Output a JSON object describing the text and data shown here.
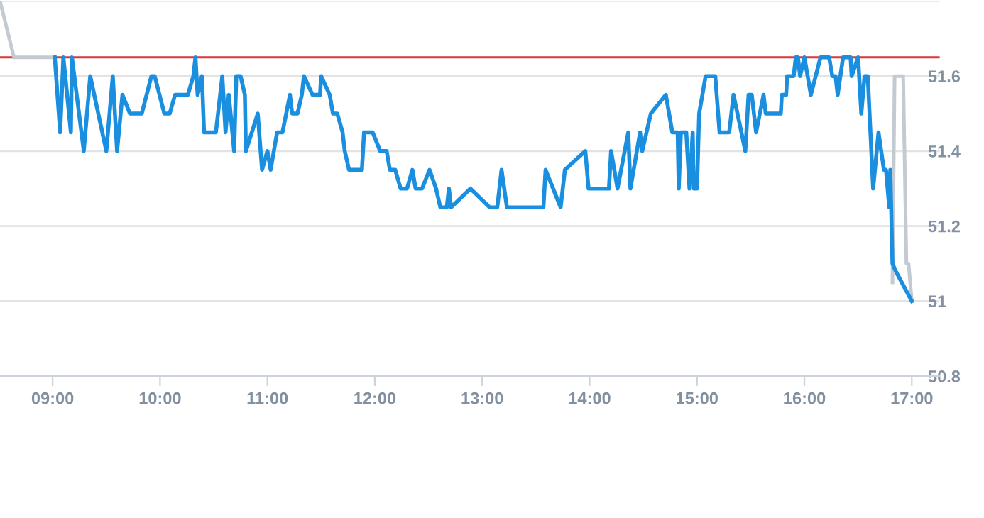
{
  "chart_data": {
    "type": "line",
    "xlim": [
      8.51,
      17.26
    ],
    "ylim": [
      50.8,
      51.8
    ],
    "xticks": [
      {
        "value": 9,
        "label": "09:00"
      },
      {
        "value": 10,
        "label": "10:00"
      },
      {
        "value": 11,
        "label": "11:00"
      },
      {
        "value": 12,
        "label": "12:00"
      },
      {
        "value": 13,
        "label": "13:00"
      },
      {
        "value": 14,
        "label": "14:00"
      },
      {
        "value": 15,
        "label": "15:00"
      },
      {
        "value": 16,
        "label": "16:00"
      },
      {
        "value": 17,
        "label": "17:00"
      }
    ],
    "yticks": [
      50.8,
      51,
      51.2,
      51.4,
      51.6,
      {
        "value": 51.8,
        "label": null
      }
    ],
    "grid": "y",
    "line_style": "solid",
    "marker": "none",
    "ref_lines": [
      {
        "axis": "y",
        "value": 51.65,
        "color": "#d9393a"
      }
    ],
    "series": [
      {
        "color": "#c3cad2",
        "x": [
          8.51,
          8.64,
          9.0,
          12.0,
          16.82,
          16.84,
          16.92,
          16.95,
          16.97,
          17.0
        ],
        "values": [
          51.8,
          51.65,
          51.65,
          null,
          51.05,
          51.6,
          51.6,
          51.1,
          51.1,
          51.0
        ]
      },
      {
        "color": "#1a8fe0",
        "x": [
          9.02,
          9.07,
          9.1,
          9.17,
          9.18,
          9.29,
          9.35,
          9.5,
          9.56,
          9.6,
          9.65,
          9.72,
          9.83,
          9.92,
          9.95,
          10.04,
          10.09,
          10.14,
          10.26,
          10.31,
          10.33,
          10.35,
          10.39,
          10.41,
          10.52,
          10.58,
          10.61,
          10.64,
          10.69,
          10.71,
          10.75,
          10.79,
          10.8,
          10.91,
          10.95,
          11.0,
          11.03,
          11.09,
          11.14,
          11.21,
          11.23,
          11.28,
          11.32,
          11.34,
          11.42,
          11.49,
          11.5,
          11.58,
          11.61,
          11.65,
          11.7,
          11.72,
          11.76,
          11.88,
          11.9,
          11.98,
          12.05,
          12.11,
          12.14,
          12.19,
          12.24,
          12.3,
          12.35,
          12.38,
          12.44,
          12.51,
          12.57,
          12.61,
          12.67,
          12.69,
          12.71,
          12.89,
          13.07,
          13.14,
          13.18,
          13.23,
          13.57,
          13.59,
          13.73,
          13.77,
          13.96,
          13.99,
          14.18,
          14.2,
          14.26,
          14.36,
          14.38,
          14.47,
          14.49,
          14.57,
          14.71,
          14.77,
          14.82,
          14.83,
          14.85,
          14.9,
          14.93,
          14.96,
          14.97,
          15.0,
          15.02,
          15.08,
          15.17,
          15.21,
          15.3,
          15.34,
          15.45,
          15.48,
          15.51,
          15.55,
          15.62,
          15.64,
          15.78,
          15.79,
          15.83,
          15.84,
          15.9,
          15.92,
          15.94,
          15.96,
          16.0,
          16.06,
          16.15,
          16.23,
          16.26,
          16.29,
          16.31,
          16.36,
          16.43,
          16.44,
          16.5,
          16.53,
          16.56,
          16.59,
          16.64,
          16.69,
          16.74,
          16.76,
          16.79,
          16.8,
          16.82,
          16.85,
          17.0
        ],
        "values": [
          51.65,
          51.45,
          51.65,
          51.45,
          51.65,
          51.4,
          51.6,
          51.4,
          51.6,
          51.4,
          51.55,
          51.5,
          51.5,
          51.6,
          51.6,
          51.5,
          51.5,
          51.55,
          51.55,
          51.6,
          51.65,
          51.55,
          51.6,
          51.45,
          51.45,
          51.6,
          51.45,
          51.55,
          51.4,
          51.6,
          51.6,
          51.55,
          51.4,
          51.5,
          51.35,
          51.4,
          51.35,
          51.45,
          51.45,
          51.55,
          51.5,
          51.5,
          51.55,
          51.6,
          51.55,
          51.55,
          51.6,
          51.55,
          51.5,
          51.5,
          51.45,
          51.4,
          51.35,
          51.35,
          51.45,
          51.45,
          51.4,
          51.4,
          51.35,
          51.35,
          51.3,
          51.3,
          51.35,
          51.3,
          51.3,
          51.35,
          51.3,
          51.25,
          51.25,
          51.3,
          51.25,
          51.3,
          51.25,
          51.25,
          51.35,
          51.25,
          51.25,
          51.35,
          51.25,
          51.35,
          51.4,
          51.3,
          51.3,
          51.4,
          51.3,
          51.45,
          51.3,
          51.45,
          51.4,
          51.5,
          51.55,
          51.45,
          51.45,
          51.3,
          51.45,
          51.45,
          51.3,
          51.45,
          51.3,
          51.3,
          51.5,
          51.6,
          51.6,
          51.45,
          51.45,
          51.55,
          51.4,
          51.55,
          51.55,
          51.45,
          51.55,
          51.5,
          51.5,
          51.55,
          51.55,
          51.6,
          51.6,
          51.65,
          51.65,
          51.6,
          51.65,
          51.55,
          51.65,
          51.65,
          51.6,
          51.6,
          51.55,
          51.65,
          51.65,
          51.6,
          51.65,
          51.5,
          51.6,
          51.6,
          51.3,
          51.45,
          51.35,
          51.35,
          51.25,
          51.35,
          51.1,
          51.08,
          51.0
        ]
      }
    ]
  }
}
